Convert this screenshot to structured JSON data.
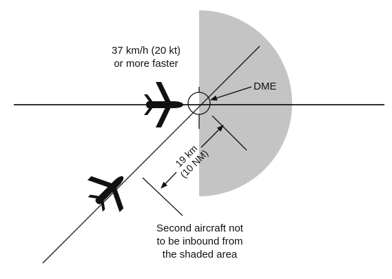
{
  "speed_note": {
    "line1": "37 km/h (20 kt)",
    "line2": "or more faster"
  },
  "dme_label": "DME",
  "distance": {
    "line1": "19 km",
    "line2": "(10 NM)"
  },
  "caption": {
    "line1": "Second aircraft not",
    "line2": "to be inbound from",
    "line3": "the shaded area"
  },
  "colors": {
    "shaded_area": "#c4c4c4",
    "line": "#111111",
    "aircraft": "#111111"
  }
}
